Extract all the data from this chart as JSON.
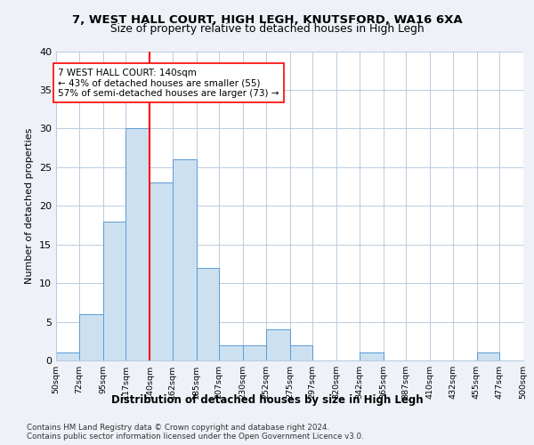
{
  "title1": "7, WEST HALL COURT, HIGH LEGH, KNUTSFORD, WA16 6XA",
  "title2": "Size of property relative to detached houses in High Legh",
  "xlabel": "Distribution of detached houses by size in High Legh",
  "ylabel": "Number of detached properties",
  "bin_labels": [
    "50sqm",
    "72sqm",
    "95sqm",
    "117sqm",
    "140sqm",
    "162sqm",
    "185sqm",
    "207sqm",
    "230sqm",
    "252sqm",
    "275sqm",
    "297sqm",
    "320sqm",
    "342sqm",
    "365sqm",
    "387sqm",
    "410sqm",
    "432sqm",
    "455sqm",
    "477sqm",
    "500sqm"
  ],
  "bin_edges": [
    50,
    72,
    95,
    117,
    140,
    162,
    185,
    207,
    230,
    252,
    275,
    297,
    320,
    342,
    365,
    387,
    410,
    432,
    455,
    477,
    500
  ],
  "bar_heights": [
    1,
    6,
    18,
    30,
    23,
    26,
    12,
    2,
    2,
    4,
    2,
    0,
    0,
    1,
    0,
    0,
    0,
    0,
    1,
    0
  ],
  "bar_color": "#cce0f0",
  "bar_edge_color": "#5b9bd5",
  "red_line_x": 140,
  "annotation_line1": "7 WEST HALL COURT: 140sqm",
  "annotation_line2": "← 43% of detached houses are smaller (55)",
  "annotation_line3": "57% of semi-detached houses are larger (73) →",
  "footer_line1": "Contains HM Land Registry data © Crown copyright and database right 2024.",
  "footer_line2": "Contains public sector information licensed under the Open Government Licence v3.0.",
  "ylim": [
    0,
    40
  ],
  "yticks": [
    0,
    5,
    10,
    15,
    20,
    25,
    30,
    35,
    40
  ],
  "bg_color": "#eef2f8",
  "plot_bg_color": "#ffffff"
}
